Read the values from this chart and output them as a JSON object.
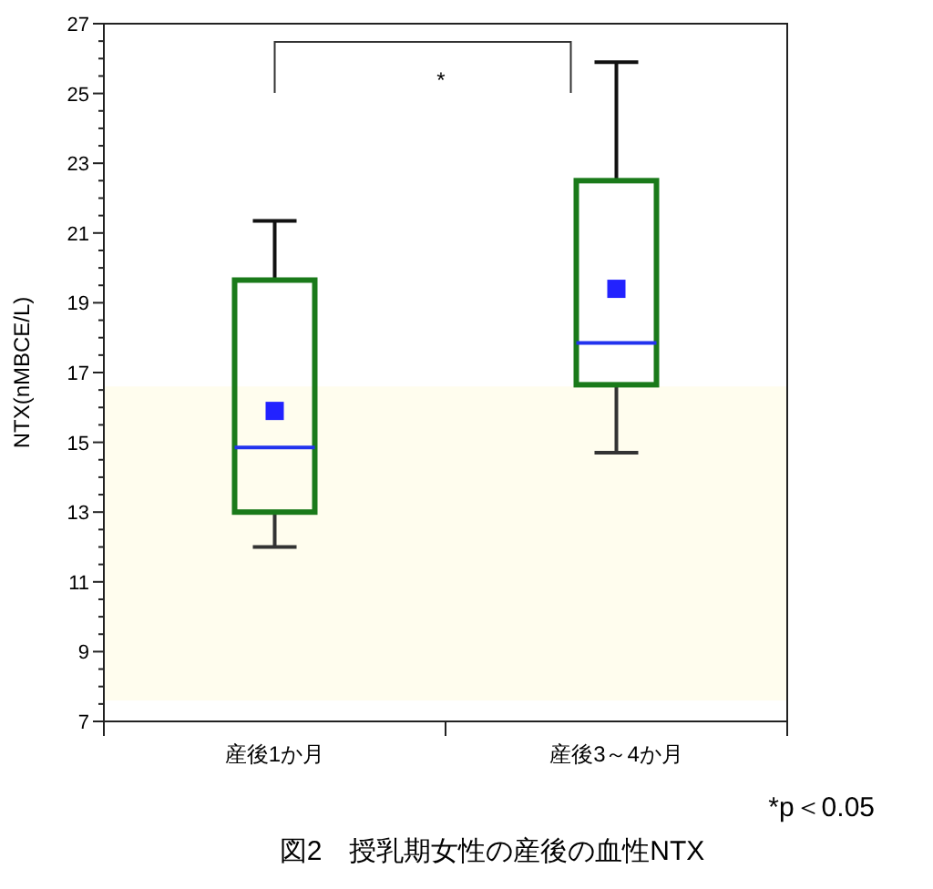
{
  "chart_data": {
    "type": "box",
    "title": "図2　授乳期女性の産後の血性NTX",
    "ylabel": "NTX(nMBCE/L)",
    "categories": [
      "産後1か月",
      "産後3～4か月"
    ],
    "series": [
      {
        "color": "#1a7a1a",
        "boxes": [
          {
            "low": 12.0,
            "q1": 13.0,
            "median": 14.85,
            "q3": 19.65,
            "high": 21.35,
            "mean": 15.9
          },
          {
            "low": 14.7,
            "q1": 16.65,
            "median": 17.85,
            "q3": 22.5,
            "high": 25.9,
            "mean": 19.4
          }
        ]
      }
    ],
    "ylim": [
      7,
      27
    ],
    "yticks": [
      7,
      {
        "value": 7.5,
        "label": null
      },
      {
        "value": 8,
        "label": null
      },
      {
        "value": 8.5,
        "label": null
      },
      9,
      {
        "value": 9.5,
        "label": null
      },
      {
        "value": 10,
        "label": null
      },
      {
        "value": 10.5,
        "label": null
      },
      11,
      {
        "value": 11.5,
        "label": null
      },
      {
        "value": 12,
        "label": null
      },
      {
        "value": 12.5,
        "label": null
      },
      13,
      {
        "value": 13.5,
        "label": null
      },
      {
        "value": 14,
        "label": null
      },
      {
        "value": 14.5,
        "label": null
      },
      15,
      {
        "value": 15.5,
        "label": null
      },
      {
        "value": 16,
        "label": null
      },
      {
        "value": 16.5,
        "label": null
      },
      17,
      {
        "value": 17.5,
        "label": null
      },
      {
        "value": 18,
        "label": null
      },
      {
        "value": 18.5,
        "label": null
      },
      19,
      {
        "value": 19.5,
        "label": null
      },
      {
        "value": 20,
        "label": null
      },
      {
        "value": 20.5,
        "label": null
      },
      21,
      {
        "value": 21.5,
        "label": null
      },
      {
        "value": 22,
        "label": null
      },
      {
        "value": 22.5,
        "label": null
      },
      23,
      {
        "value": 23.5,
        "label": null
      },
      {
        "value": 24,
        "label": null
      },
      {
        "value": 24.5,
        "label": null
      },
      25,
      {
        "value": 25.5,
        "label": null
      },
      {
        "value": 26,
        "label": null
      },
      {
        "value": 26.5,
        "label": null
      },
      27
    ],
    "bands": [
      {
        "axis": "y",
        "from": 7.6,
        "to": 16.6,
        "color": "#fffdee"
      }
    ],
    "annotations": [
      "*",
      "*p＜0.05"
    ]
  }
}
